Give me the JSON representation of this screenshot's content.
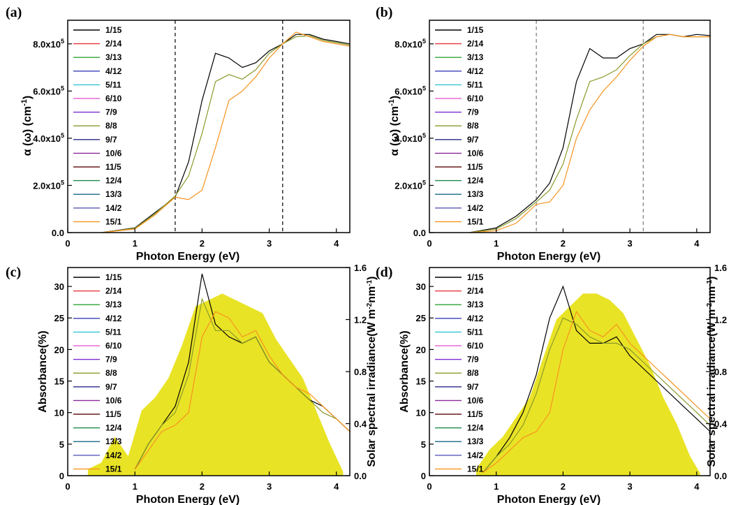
{
  "figure": {
    "series_names": [
      "1/15",
      "2/14",
      "3/13",
      "4/12",
      "5/11",
      "6/10",
      "7/9",
      "8/8",
      "9/7",
      "10/6",
      "11/5",
      "12/4",
      "13/3",
      "14/2",
      "15/1"
    ],
    "series_colors": [
      "#000000",
      "#e8343a",
      "#2fa535",
      "#3a3fb8",
      "#34c6d2",
      "#e86ad6",
      "#7a2ad2",
      "#8a9a2a",
      "#2a2a8a",
      "#8a2a9a",
      "#6a1a1a",
      "#1a8a4a",
      "#1a6a8a",
      "#5a5ab8",
      "#f7931e"
    ],
    "solar_fill_color": "#e8e21a"
  },
  "chart_data": [
    {
      "panel": "(a)",
      "type": "line",
      "xlabel": "Photon Energy (eV)",
      "ylabel": "α (ω) (cm-1)",
      "xlim": [
        0,
        4.2
      ],
      "ylim": [
        0,
        900000
      ],
      "xticks": [
        "0",
        "1",
        "2",
        "3",
        "4"
      ],
      "yticks": [
        "0.0",
        "2.0x10^5",
        "4.0x10^5",
        "6.0x10^5",
        "8.0x10^5"
      ],
      "vlines": [
        1.6,
        3.2
      ],
      "legend_position": "top-left",
      "series_summary": "15 curves: onset ~0.5 eV, near 0 below 1 eV, ~1.5e5 at 1.6 eV, rising through 2-2.5 eV to ~6-8e5, plateau ~8e5 above 3.2 eV",
      "x": [
        0.5,
        1.0,
        1.3,
        1.6,
        1.8,
        2.0,
        2.2,
        2.4,
        2.6,
        2.8,
        3.0,
        3.2,
        3.4,
        3.6,
        3.8,
        4.0,
        4.2
      ],
      "series": [
        {
          "name": "1/15",
          "values": [
            0,
            20000,
            85000,
            150000,
            300000,
            560000,
            760000,
            740000,
            700000,
            720000,
            770000,
            800000,
            840000,
            840000,
            820000,
            810000,
            800000
          ]
        },
        {
          "name": "8/8",
          "values": [
            0,
            18000,
            80000,
            155000,
            240000,
            420000,
            640000,
            670000,
            650000,
            690000,
            760000,
            800000,
            830000,
            835000,
            815000,
            805000,
            795000
          ]
        },
        {
          "name": "15/1",
          "values": [
            0,
            15000,
            75000,
            150000,
            140000,
            180000,
            360000,
            560000,
            600000,
            660000,
            740000,
            800000,
            850000,
            830000,
            810000,
            800000,
            790000
          ]
        }
      ]
    },
    {
      "panel": "(b)",
      "type": "line",
      "xlabel": "Photon Energy (eV)",
      "ylabel": "α (ω) (cm-1)",
      "xlim": [
        0,
        4.2
      ],
      "ylim": [
        0,
        900000
      ],
      "xticks": [
        "0",
        "1",
        "2",
        "3",
        "4"
      ],
      "yticks": [
        "0.0",
        "2.0x10^5",
        "4.0x10^5",
        "6.0x10^5",
        "8.0x10^5"
      ],
      "vlines": [
        1.6,
        3.2
      ],
      "legend_position": "top-left",
      "series_summary": "15 curves: onset ~0.7 eV, ~1.3e5 at 1.6 eV, rising 1.8-2.5 eV to ~6-8e5, plateau ~8.3e5 above 3.2 eV",
      "x": [
        0.6,
        1.0,
        1.3,
        1.6,
        1.8,
        2.0,
        2.2,
        2.4,
        2.6,
        2.8,
        3.0,
        3.2,
        3.4,
        3.6,
        3.8,
        4.0,
        4.2
      ],
      "series": [
        {
          "name": "1/15",
          "values": [
            0,
            20000,
            70000,
            140000,
            210000,
            360000,
            640000,
            780000,
            740000,
            740000,
            780000,
            800000,
            840000,
            840000,
            830000,
            840000,
            835000
          ]
        },
        {
          "name": "8/8",
          "values": [
            0,
            15000,
            60000,
            130000,
            180000,
            290000,
            480000,
            640000,
            660000,
            690000,
            750000,
            800000,
            830000,
            840000,
            830000,
            830000,
            830000
          ]
        },
        {
          "name": "15/1",
          "values": [
            0,
            8000,
            40000,
            120000,
            130000,
            200000,
            400000,
            520000,
            600000,
            660000,
            730000,
            790000,
            830000,
            840000,
            830000,
            830000,
            830000
          ]
        }
      ]
    },
    {
      "panel": "(c)",
      "type": "line",
      "xlabel": "Photon Energy (eV)",
      "ylabel": "Absorbance(%)",
      "y2label": "Solar spectral irradiance(W m-2nm-1)",
      "xlim": [
        0,
        4.2
      ],
      "ylim": [
        0,
        33
      ],
      "y2lim": [
        0,
        1.6
      ],
      "xticks": [
        "0",
        "1",
        "2",
        "3",
        "4"
      ],
      "yticks": [
        "0",
        "5",
        "10",
        "15",
        "20",
        "25",
        "30"
      ],
      "y2ticks": [
        "0.0",
        "0.4",
        "0.8",
        "1.2",
        "1.6"
      ],
      "legend_position": "top-left",
      "series_summary": "15 curves: absorbance rises from ~1 eV, peaks 25-33% near 2.0 eV, ~21-23% at 2.5-2.8 eV, declines to ~7-8% at 4.2 eV",
      "x": [
        1.0,
        1.2,
        1.4,
        1.6,
        1.8,
        2.0,
        2.2,
        2.4,
        2.6,
        2.8,
        3.0,
        3.2,
        3.4,
        3.6,
        3.8,
        4.0,
        4.2
      ],
      "series": [
        {
          "name": "1/15",
          "values": [
            1.0,
            5,
            8,
            11,
            18,
            32,
            24,
            22,
            21,
            22,
            18,
            16,
            14,
            12,
            11,
            9,
            7
          ]
        },
        {
          "name": "8/8",
          "values": [
            1.0,
            5,
            8,
            10,
            16,
            28,
            23,
            23,
            21,
            22,
            18,
            16,
            14,
            12,
            10,
            9,
            7
          ]
        },
        {
          "name": "15/1",
          "values": [
            1.0,
            4,
            7,
            8,
            10,
            22,
            26,
            25,
            22,
            23,
            19,
            16,
            14,
            13,
            11,
            9,
            7
          ]
        }
      ],
      "solar_irradiance": {
        "x": [
          0.3,
          0.5,
          0.7,
          0.9,
          1.1,
          1.3,
          1.5,
          1.7,
          1.9,
          2.1,
          2.3,
          2.5,
          2.7,
          2.9,
          3.1,
          3.3,
          3.5,
          3.7,
          3.9,
          4.1
        ],
        "values": [
          0.05,
          0.1,
          0.3,
          0.15,
          0.5,
          0.6,
          0.75,
          1.0,
          1.3,
          1.35,
          1.4,
          1.35,
          1.3,
          1.25,
          1.05,
          0.9,
          0.75,
          0.5,
          0.25,
          0.03
        ]
      }
    },
    {
      "panel": "(d)",
      "type": "line",
      "xlabel": "Photon Energy (eV)",
      "ylabel": "Absorbance(%)",
      "y2label": "Solar spectral irradiance(W m-2nm-1)",
      "xlim": [
        0,
        4.2
      ],
      "ylim": [
        0,
        33
      ],
      "y2lim": [
        0,
        1.6
      ],
      "xticks": [
        "0",
        "1",
        "2",
        "3",
        "4"
      ],
      "yticks": [
        "0",
        "5",
        "10",
        "15",
        "20",
        "25",
        "30"
      ],
      "y2ticks": [
        "0.0",
        "0.4",
        "0.8",
        "1.2",
        "1.6"
      ],
      "legend_position": "top-left",
      "series_summary": "15 curves: absorbance rises from ~0.8 eV, peaks 22-31% near 1.9-2.2 eV, ~20-23% at 2.5-2.8 eV, declines to ~6-10% at 4.2 eV",
      "x": [
        0.8,
        1.0,
        1.2,
        1.4,
        1.6,
        1.8,
        2.0,
        2.2,
        2.4,
        2.6,
        2.8,
        3.0,
        3.2,
        3.4,
        3.6,
        3.8,
        4.0,
        4.2
      ],
      "series": [
        {
          "name": "1/15",
          "values": [
            0.5,
            3,
            6,
            10,
            16,
            25,
            30,
            23,
            21,
            21,
            22,
            19,
            17,
            15,
            13,
            11,
            9,
            7
          ]
        },
        {
          "name": "8/8",
          "values": [
            0.5,
            3,
            5,
            8,
            13,
            20,
            25,
            24,
            22,
            21,
            21,
            20,
            18,
            16,
            14,
            12,
            10,
            8
          ]
        },
        {
          "name": "15/1",
          "values": [
            0.5,
            2,
            4,
            6,
            7,
            10,
            20,
            26,
            23,
            22,
            24,
            21,
            19,
            17,
            15,
            13,
            11,
            9
          ]
        }
      ],
      "solar_irradiance": {
        "x": [
          0.7,
          0.9,
          1.1,
          1.3,
          1.5,
          1.7,
          1.9,
          2.1,
          2.3,
          2.5,
          2.7,
          2.9,
          3.1,
          3.3,
          3.5,
          3.7,
          3.9,
          4.05
        ],
        "values": [
          0.05,
          0.2,
          0.3,
          0.45,
          0.6,
          0.9,
          1.2,
          1.3,
          1.4,
          1.4,
          1.35,
          1.25,
          1.05,
          0.85,
          0.6,
          0.4,
          0.15,
          0.02
        ]
      }
    }
  ]
}
